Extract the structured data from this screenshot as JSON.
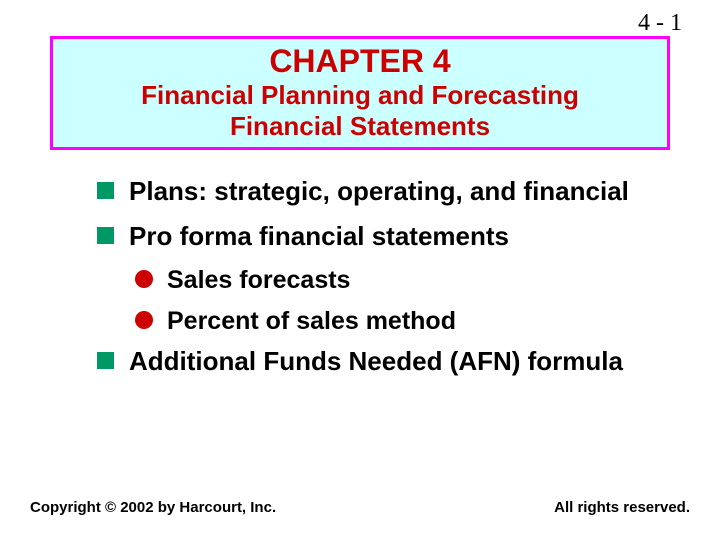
{
  "page_number": "4 - 1",
  "title": {
    "chapter": "CHAPTER 4",
    "subtitle1": "Financial Planning and Forecasting",
    "subtitle2": "Financial Statements",
    "box_bg": "#ccffff",
    "box_border": "#ff00ff",
    "text_color": "#cc0000"
  },
  "bullets": {
    "square_color": "#009966",
    "circle_color": "#cc0000",
    "items": [
      {
        "level": 1,
        "text": "Plans:  strategic, operating, and financial"
      },
      {
        "level": 1,
        "text": "Pro forma financial statements"
      },
      {
        "level": 2,
        "text": "Sales forecasts"
      },
      {
        "level": 2,
        "text": "Percent of sales method"
      },
      {
        "level": 1,
        "text": "Additional Funds Needed (AFN) formula"
      }
    ]
  },
  "footer": {
    "left": "Copyright © 2002 by Harcourt, Inc.",
    "right": "All rights reserved."
  }
}
